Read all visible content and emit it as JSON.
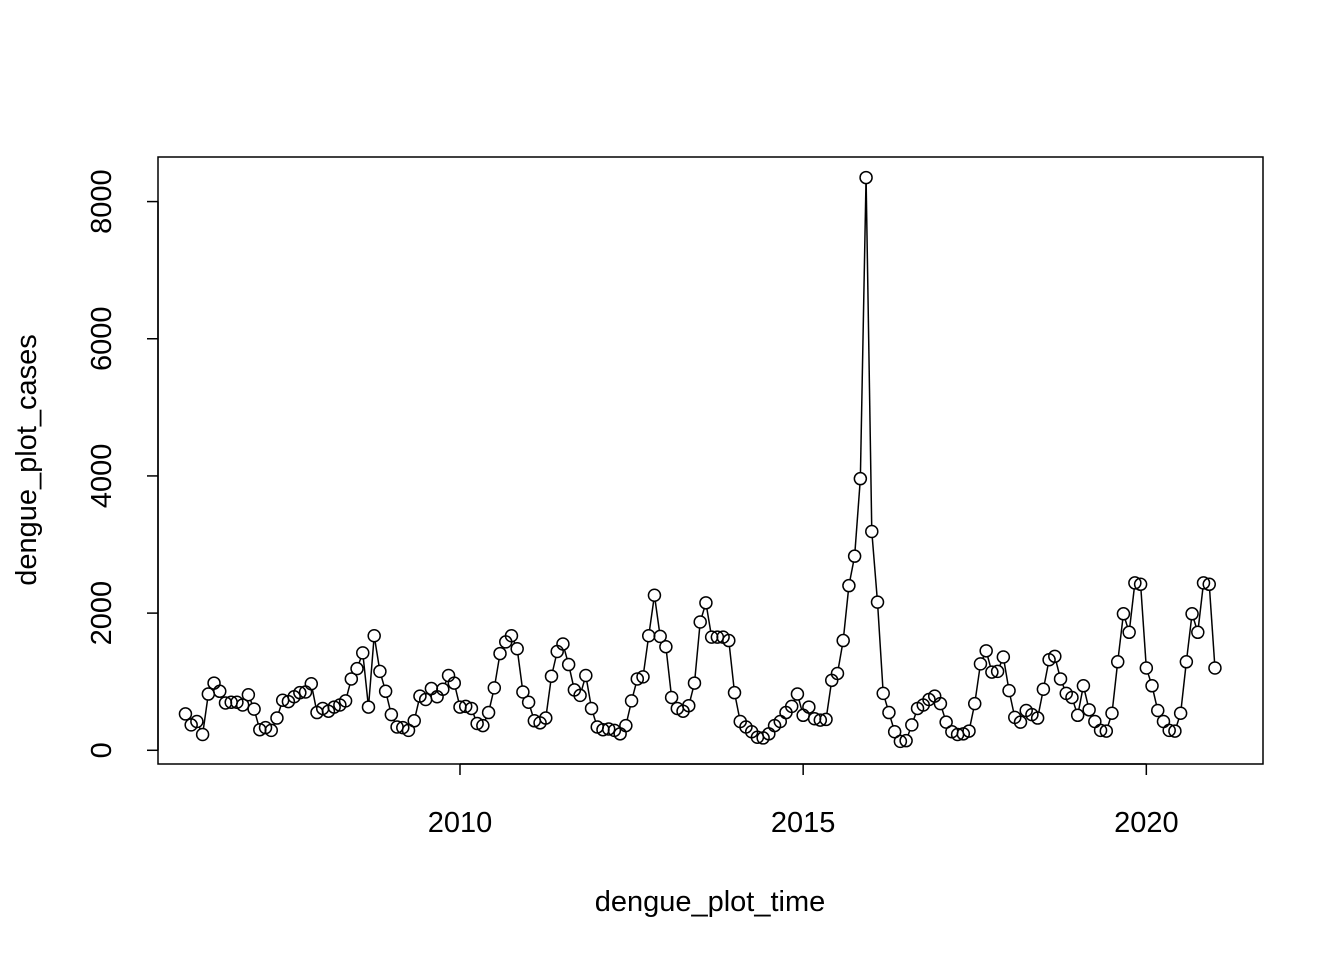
{
  "chart_data": {
    "type": "line",
    "xlabel": "dengue_plot_time",
    "ylabel": "dengue_plot_cases",
    "xlim": [
      2005.6,
      2021.7
    ],
    "ylim": [
      -200,
      8650
    ],
    "x_ticks": [
      2010,
      2015,
      2020
    ],
    "y_ticks": [
      0,
      2000,
      4000,
      6000,
      8000
    ],
    "x_tick_labels": [
      "2010",
      "2015",
      "2020"
    ],
    "y_tick_labels": [
      "0",
      "2000",
      "4000",
      "6000",
      "8000"
    ],
    "grid": false,
    "legend": "none",
    "series": [
      {
        "start_year": 2006,
        "frequency": 12,
        "marker": "open-circle",
        "color": "#000000",
        "values": [
          530,
          370,
          420,
          230,
          820,
          980,
          860,
          690,
          700,
          700,
          660,
          810,
          600,
          300,
          330,
          290,
          470,
          730,
          710,
          780,
          840,
          850,
          970,
          550,
          610,
          570,
          630,
          660,
          720,
          1040,
          1190,
          1420,
          630,
          1670,
          1150,
          860,
          520,
          340,
          330,
          290,
          430,
          790,
          740,
          900,
          780,
          890,
          1090,
          980,
          630,
          640,
          610,
          390,
          360,
          550,
          910,
          1410,
          1580,
          1670,
          1480,
          850,
          700,
          430,
          400,
          470,
          1080,
          1440,
          1550,
          1250,
          880,
          800,
          1090,
          610,
          340,
          300,
          310,
          290,
          240,
          360,
          720,
          1040,
          1070,
          1670,
          2260,
          1660,
          1510,
          770,
          610,
          570,
          650,
          980,
          1870,
          2150,
          1650,
          1650,
          1650,
          1600,
          840,
          420,
          340,
          270,
          190,
          180,
          240,
          360,
          420,
          550,
          640,
          820,
          510,
          630,
          460,
          440,
          450,
          1020,
          1120,
          1600,
          2400,
          2830,
          3960,
          8350,
          3190,
          2160,
          830,
          550,
          270,
          130,
          140,
          370,
          610,
          660,
          740,
          790,
          680,
          410,
          270,
          230,
          240,
          280,
          680,
          1260,
          1450,
          1140,
          1150,
          1360,
          870,
          480,
          410,
          580,
          520,
          470,
          890,
          1320,
          1370,
          1040,
          830,
          770,
          510,
          940,
          590,
          420,
          290,
          280,
          540,
          1290,
          1990,
          1720,
          2440,
          2420,
          1200,
          940,
          580,
          420,
          290,
          280,
          540,
          1290,
          1990,
          1720,
          2440,
          2420,
          1200
        ]
      }
    ]
  }
}
